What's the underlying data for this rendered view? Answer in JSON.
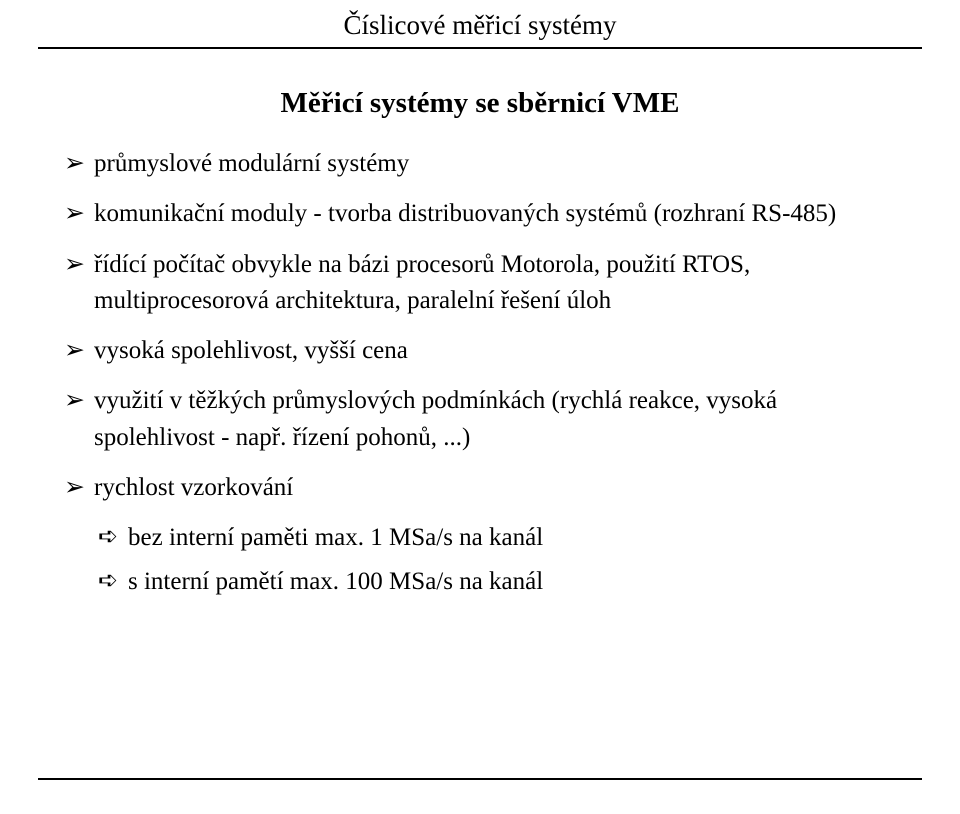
{
  "header": {
    "title": "Číslicové měřicí systémy"
  },
  "subtitle": "Měřicí systémy se sběrnicí VME",
  "bullets": [
    {
      "text": "průmyslové modulární systémy"
    },
    {
      "text": "komunikační moduly - tvorba distribuovaných systémů (rozhraní RS-485)"
    },
    {
      "text": "řídící počítač obvykle na bázi procesorů Motorola, použití RTOS, multiprocesorová architektura, paralelní řešení úloh"
    },
    {
      "text": "vysoká spolehlivost, vyšší cena"
    },
    {
      "text": "využití v těžkých průmyslových podmínkách (rychlá reakce, vysoká spolehlivost - např. řízení pohonů, ...)"
    },
    {
      "text": "rychlost vzorkování"
    }
  ],
  "subbullets": [
    {
      "text": "bez interní paměti max. 1 MSa/s na kanál"
    },
    {
      "text": "s interní pamětí max. 100 MSa/s na kanál"
    }
  ],
  "glyphs": {
    "main_arrow": "➢",
    "sub_arrow": "➪"
  },
  "style": {
    "background_color": "#ffffff",
    "text_color": "#000000",
    "rule_color": "#000000",
    "header_fontsize": 27,
    "subtitle_fontsize": 29,
    "body_fontsize": 25,
    "line_height": 1.45
  }
}
